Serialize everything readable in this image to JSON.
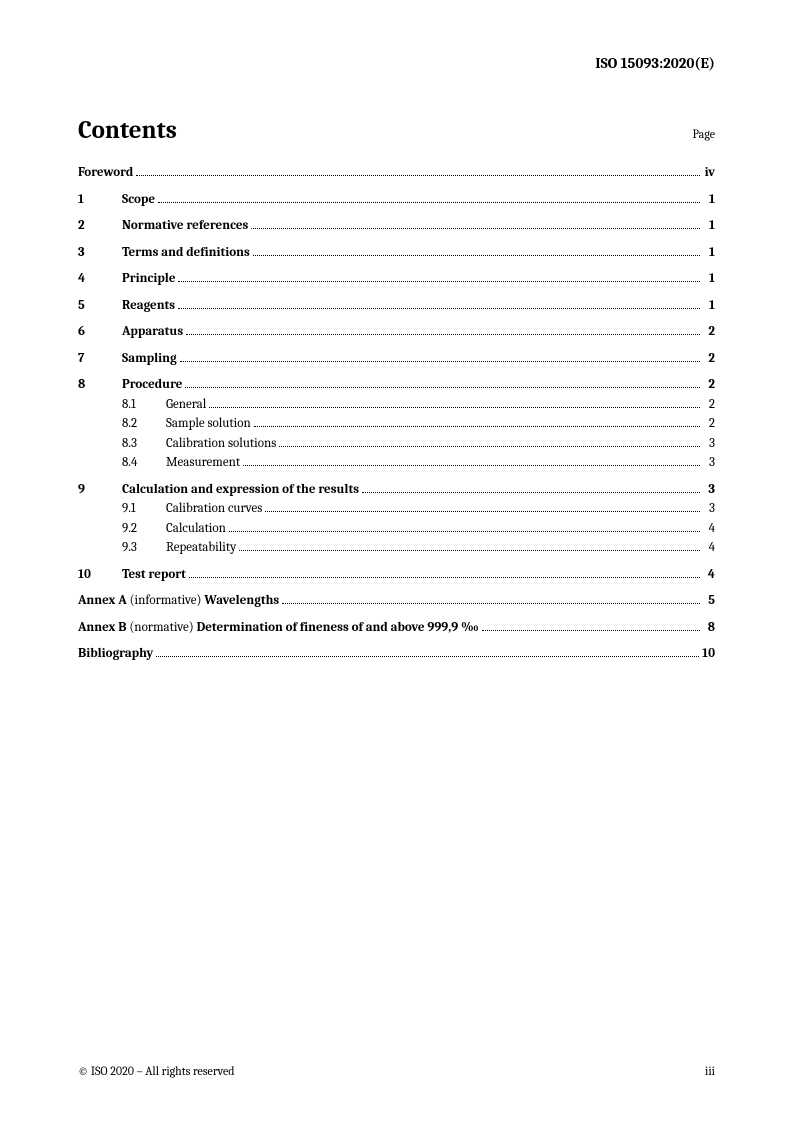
{
  "header": "ISO 15093:2020(E)",
  "title": "Contents",
  "page_label": "Page",
  "toc": {
    "foreword": {
      "label": "Foreword",
      "page": "iv"
    },
    "sections": [
      {
        "num": "1",
        "title": "Scope",
        "page": "1"
      },
      {
        "num": "2",
        "title": "Normative references",
        "page": "1"
      },
      {
        "num": "3",
        "title": "Terms and definitions",
        "page": "1"
      },
      {
        "num": "4",
        "title": "Principle",
        "page": "1"
      },
      {
        "num": "5",
        "title": "Reagents",
        "page": "1"
      },
      {
        "num": "6",
        "title": "Apparatus",
        "page": "2"
      },
      {
        "num": "7",
        "title": "Sampling",
        "page": "2"
      },
      {
        "num": "8",
        "title": "Procedure",
        "page": "2",
        "subs": [
          {
            "num": "8.1",
            "title": "General",
            "page": "2"
          },
          {
            "num": "8.2",
            "title": "Sample solution",
            "page": "2"
          },
          {
            "num": "8.3",
            "title": "Calibration solutions",
            "page": "3"
          },
          {
            "num": "8.4",
            "title": "Measurement",
            "page": "3"
          }
        ]
      },
      {
        "num": "9",
        "title": "Calculation and expression of the results",
        "page": "3",
        "subs": [
          {
            "num": "9.1",
            "title": "Calibration curves",
            "page": "3"
          },
          {
            "num": "9.2",
            "title": "Calculation",
            "page": "4"
          },
          {
            "num": "9.3",
            "title": "Repeatability",
            "page": "4"
          }
        ]
      },
      {
        "num": "10",
        "title": "Test report",
        "page": "4"
      }
    ],
    "annexes": [
      {
        "prefix": "Annex A",
        "type": "(informative)",
        "title": "Wavelengths",
        "page": "5"
      },
      {
        "prefix": "Annex B",
        "type": "(normative)",
        "title": "Determination of fineness of and above 999,9 ‰",
        "page": "8"
      }
    ],
    "bibliography": {
      "label": "Bibliography",
      "page": "10"
    }
  },
  "footer": {
    "copyright": "© ISO 2020 – All rights reserved",
    "pagenum": "iii"
  }
}
